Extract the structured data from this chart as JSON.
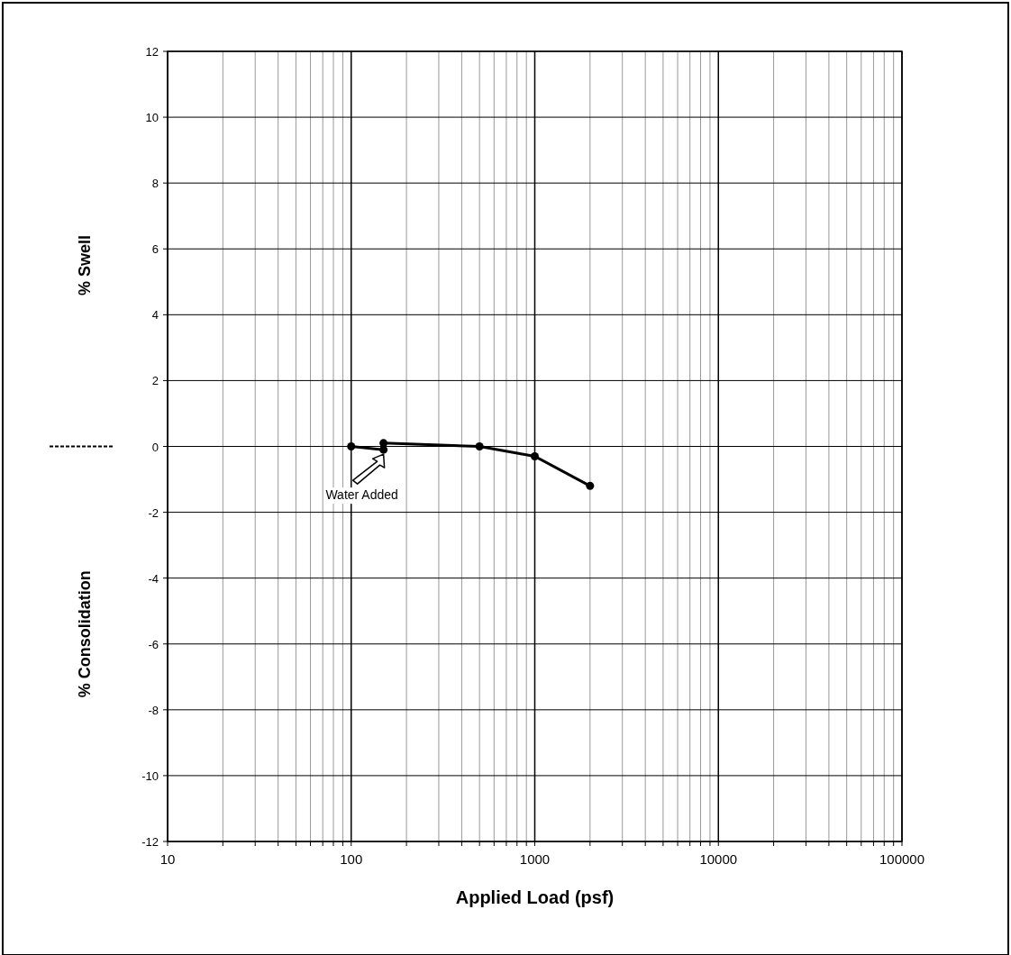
{
  "chart_data": {
    "type": "line",
    "xlabel": "Applied Load (psf)",
    "ylabel": "% Swell",
    "x": [
      100,
      150,
      150,
      500,
      1000,
      2000
    ],
    "series": [
      {
        "color": "#000000",
        "values": [
          0,
          -0.1,
          0.1,
          0,
          -0.3,
          -1.2
        ]
      }
    ],
    "log": "x",
    "xlim": [
      10,
      100000
    ],
    "ylim": [
      -12,
      12
    ],
    "xticks": [
      10,
      {
        "value": 20,
        "label": null
      },
      {
        "value": 30,
        "label": null
      },
      {
        "value": 40,
        "label": null
      },
      {
        "value": 50,
        "label": null
      },
      {
        "value": 60,
        "label": null
      },
      {
        "value": 70,
        "label": null
      },
      {
        "value": 80,
        "label": null
      },
      {
        "value": 90,
        "label": null
      },
      100,
      {
        "value": 200,
        "label": null
      },
      {
        "value": 300,
        "label": null
      },
      {
        "value": 400,
        "label": null
      },
      {
        "value": 500,
        "label": null
      },
      {
        "value": 600,
        "label": null
      },
      {
        "value": 700,
        "label": null
      },
      {
        "value": 800,
        "label": null
      },
      {
        "value": 900,
        "label": null
      },
      1000,
      {
        "value": 2000,
        "label": null
      },
      {
        "value": 3000,
        "label": null
      },
      {
        "value": 4000,
        "label": null
      },
      {
        "value": 5000,
        "label": null
      },
      {
        "value": 6000,
        "label": null
      },
      {
        "value": 7000,
        "label": null
      },
      {
        "value": 8000,
        "label": null
      },
      {
        "value": 9000,
        "label": null
      },
      10000,
      {
        "value": 20000,
        "label": null
      },
      {
        "value": 30000,
        "label": null
      },
      {
        "value": 40000,
        "label": null
      },
      {
        "value": 50000,
        "label": null
      },
      {
        "value": 60000,
        "label": null
      },
      {
        "value": 70000,
        "label": null
      },
      {
        "value": 80000,
        "label": null
      },
      {
        "value": 90000,
        "label": null
      },
      100000
    ],
    "yticks": [
      -12,
      -10,
      -8,
      -6,
      -4,
      -2,
      0,
      2,
      4,
      6,
      8,
      10,
      12
    ],
    "grid": true,
    "marker": "circle",
    "line_style": "solid",
    "annotations": [
      "% Consolidation",
      {
        "text": "Water Added",
        "x": 150,
        "y": -0.1
      }
    ]
  }
}
